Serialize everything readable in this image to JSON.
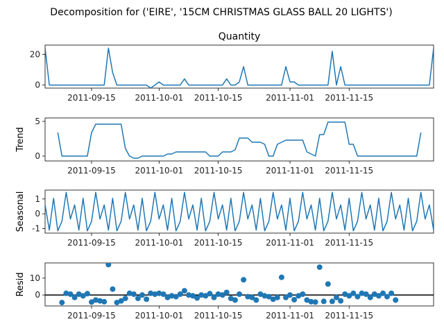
{
  "figure": {
    "suptitle": "Decomposition for ('EIRE', '15CM CHRISTMAS GLASS BALL 20 LIGHTS')",
    "line_color": "#1f77b4"
  },
  "chart_data": [
    {
      "type": "line",
      "title": "Quantity",
      "ylabel": "",
      "x_start": "2011-09-04",
      "x_end": "2011-12-05",
      "x_ticks": [
        "2011-09-15",
        "2011-10-01",
        "2011-10-15",
        "2011-11-01",
        "2011-11-15"
      ],
      "ylim": [
        -2,
        26
      ],
      "y_ticks": [
        0,
        20
      ],
      "points": [
        [
          "2011-09-04",
          24
        ],
        [
          "2011-09-05",
          0
        ],
        [
          "2011-09-06",
          0
        ],
        [
          "2011-09-07",
          0
        ],
        [
          "2011-09-08",
          0
        ],
        [
          "2011-09-09",
          0
        ],
        [
          "2011-09-10",
          0
        ],
        [
          "2011-09-11",
          0
        ],
        [
          "2011-09-12",
          0
        ],
        [
          "2011-09-13",
          0
        ],
        [
          "2011-09-14",
          0
        ],
        [
          "2011-09-15",
          0
        ],
        [
          "2011-09-16",
          0
        ],
        [
          "2011-09-17",
          0
        ],
        [
          "2011-09-18",
          0
        ],
        [
          "2011-09-19",
          24
        ],
        [
          "2011-09-20",
          8
        ],
        [
          "2011-09-21",
          0
        ],
        [
          "2011-09-22",
          0
        ],
        [
          "2011-09-23",
          0
        ],
        [
          "2011-09-24",
          0
        ],
        [
          "2011-09-25",
          0
        ],
        [
          "2011-09-26",
          0
        ],
        [
          "2011-09-27",
          0
        ],
        [
          "2011-09-28",
          0
        ],
        [
          "2011-09-29",
          -2
        ],
        [
          "2011-09-30",
          0
        ],
        [
          "2011-10-01",
          2
        ],
        [
          "2011-10-02",
          0
        ],
        [
          "2011-10-03",
          0
        ],
        [
          "2011-10-04",
          0
        ],
        [
          "2011-10-05",
          0
        ],
        [
          "2011-10-06",
          0
        ],
        [
          "2011-10-07",
          4
        ],
        [
          "2011-10-08",
          0
        ],
        [
          "2011-10-09",
          0
        ],
        [
          "2011-10-10",
          0
        ],
        [
          "2011-10-11",
          0
        ],
        [
          "2011-10-12",
          0
        ],
        [
          "2011-10-13",
          0
        ],
        [
          "2011-10-14",
          0
        ],
        [
          "2011-10-15",
          0
        ],
        [
          "2011-10-16",
          0
        ],
        [
          "2011-10-17",
          4
        ],
        [
          "2011-10-18",
          0
        ],
        [
          "2011-10-19",
          0
        ],
        [
          "2011-10-20",
          2
        ],
        [
          "2011-10-21",
          12
        ],
        [
          "2011-10-22",
          0
        ],
        [
          "2011-10-23",
          0
        ],
        [
          "2011-10-24",
          0
        ],
        [
          "2011-10-25",
          0
        ],
        [
          "2011-10-26",
          0
        ],
        [
          "2011-10-27",
          0
        ],
        [
          "2011-10-28",
          0
        ],
        [
          "2011-10-29",
          0
        ],
        [
          "2011-10-30",
          0
        ],
        [
          "2011-10-31",
          12
        ],
        [
          "2011-11-01",
          2
        ],
        [
          "2011-11-02",
          2
        ],
        [
          "2011-11-03",
          0
        ],
        [
          "2011-11-04",
          0
        ],
        [
          "2011-11-05",
          0
        ],
        [
          "2011-11-06",
          0
        ],
        [
          "2011-11-07",
          0
        ],
        [
          "2011-11-08",
          0
        ],
        [
          "2011-11-09",
          0
        ],
        [
          "2011-11-10",
          0
        ],
        [
          "2011-11-11",
          22
        ],
        [
          "2011-11-12",
          0
        ],
        [
          "2011-11-13",
          12
        ],
        [
          "2011-11-14",
          0
        ],
        [
          "2011-11-15",
          0
        ],
        [
          "2011-11-16",
          0
        ],
        [
          "2011-11-17",
          0
        ],
        [
          "2011-11-18",
          0
        ],
        [
          "2011-11-19",
          0
        ],
        [
          "2011-11-20",
          0
        ],
        [
          "2011-11-21",
          0
        ],
        [
          "2011-11-22",
          0
        ],
        [
          "2011-11-23",
          0
        ],
        [
          "2011-11-24",
          0
        ],
        [
          "2011-11-25",
          0
        ],
        [
          "2011-11-26",
          0
        ],
        [
          "2011-11-27",
          0
        ],
        [
          "2011-11-28",
          0
        ],
        [
          "2011-11-29",
          0
        ],
        [
          "2011-11-30",
          0
        ],
        [
          "2011-12-01",
          0
        ],
        [
          "2011-12-02",
          0
        ],
        [
          "2011-12-03",
          0
        ],
        [
          "2011-12-04",
          0
        ],
        [
          "2011-12-05",
          24
        ]
      ]
    },
    {
      "type": "line",
      "title": "",
      "ylabel": "Trend",
      "x_start": "2011-09-04",
      "x_end": "2011-12-05",
      "x_ticks": [
        "2011-09-15",
        "2011-10-01",
        "2011-10-15",
        "2011-11-01",
        "2011-11-15"
      ],
      "ylim": [
        -0.7,
        5.5
      ],
      "y_ticks": [
        0,
        5
      ],
      "points": [
        [
          "2011-09-07",
          3.4
        ],
        [
          "2011-09-08",
          0
        ],
        [
          "2011-09-09",
          0
        ],
        [
          "2011-09-10",
          0
        ],
        [
          "2011-09-11",
          0
        ],
        [
          "2011-09-12",
          0
        ],
        [
          "2011-09-13",
          0
        ],
        [
          "2011-09-14",
          0
        ],
        [
          "2011-09-15",
          3.4
        ],
        [
          "2011-09-16",
          4.6
        ],
        [
          "2011-09-17",
          4.6
        ],
        [
          "2011-09-18",
          4.6
        ],
        [
          "2011-09-19",
          4.6
        ],
        [
          "2011-09-20",
          4.6
        ],
        [
          "2011-09-21",
          4.6
        ],
        [
          "2011-09-22",
          4.6
        ],
        [
          "2011-09-23",
          1.1
        ],
        [
          "2011-09-24",
          0
        ],
        [
          "2011-09-25",
          -0.3
        ],
        [
          "2011-09-26",
          -0.3
        ],
        [
          "2011-09-27",
          0
        ],
        [
          "2011-09-28",
          0
        ],
        [
          "2011-09-29",
          0
        ],
        [
          "2011-09-30",
          0
        ],
        [
          "2011-10-01",
          0
        ],
        [
          "2011-10-02",
          0
        ],
        [
          "2011-10-03",
          0.3
        ],
        [
          "2011-10-04",
          0.3
        ],
        [
          "2011-10-05",
          0.6
        ],
        [
          "2011-10-06",
          0.6
        ],
        [
          "2011-10-07",
          0.6
        ],
        [
          "2011-10-08",
          0.6
        ],
        [
          "2011-10-09",
          0.6
        ],
        [
          "2011-10-10",
          0.6
        ],
        [
          "2011-10-11",
          0.6
        ],
        [
          "2011-10-12",
          0.6
        ],
        [
          "2011-10-13",
          0
        ],
        [
          "2011-10-14",
          0
        ],
        [
          "2011-10-15",
          0
        ],
        [
          "2011-10-16",
          0.6
        ],
        [
          "2011-10-17",
          0.6
        ],
        [
          "2011-10-18",
          0.6
        ],
        [
          "2011-10-19",
          0.9
        ],
        [
          "2011-10-20",
          2.6
        ],
        [
          "2011-10-21",
          2.6
        ],
        [
          "2011-10-22",
          2.6
        ],
        [
          "2011-10-23",
          2.0
        ],
        [
          "2011-10-24",
          2.0
        ],
        [
          "2011-10-25",
          2.0
        ],
        [
          "2011-10-26",
          1.7
        ],
        [
          "2011-10-27",
          0
        ],
        [
          "2011-10-28",
          0
        ],
        [
          "2011-10-29",
          1.7
        ],
        [
          "2011-10-30",
          2.0
        ],
        [
          "2011-10-31",
          2.3
        ],
        [
          "2011-11-01",
          2.3
        ],
        [
          "2011-11-02",
          2.3
        ],
        [
          "2011-11-03",
          2.3
        ],
        [
          "2011-11-04",
          2.3
        ],
        [
          "2011-11-05",
          0.6
        ],
        [
          "2011-11-06",
          0.3
        ],
        [
          "2011-11-07",
          0
        ],
        [
          "2011-11-08",
          3.1
        ],
        [
          "2011-11-09",
          3.1
        ],
        [
          "2011-11-10",
          4.9
        ],
        [
          "2011-11-11",
          4.9
        ],
        [
          "2011-11-12",
          4.9
        ],
        [
          "2011-11-13",
          4.9
        ],
        [
          "2011-11-14",
          4.9
        ],
        [
          "2011-11-15",
          1.7
        ],
        [
          "2011-11-16",
          1.7
        ],
        [
          "2011-11-17",
          0
        ],
        [
          "2011-11-18",
          0
        ],
        [
          "2011-11-19",
          0
        ],
        [
          "2011-11-20",
          0
        ],
        [
          "2011-11-21",
          0
        ],
        [
          "2011-11-22",
          0
        ],
        [
          "2011-11-23",
          0
        ],
        [
          "2011-11-24",
          0
        ],
        [
          "2011-11-25",
          0
        ],
        [
          "2011-11-26",
          0
        ],
        [
          "2011-11-27",
          0
        ],
        [
          "2011-11-28",
          0
        ],
        [
          "2011-11-29",
          0
        ],
        [
          "2011-11-30",
          0
        ],
        [
          "2011-12-01",
          0
        ],
        [
          "2011-12-02",
          3.4
        ]
      ]
    },
    {
      "type": "line",
      "title": "",
      "ylabel": "Seasonal",
      "x_start": "2011-09-04",
      "x_end": "2011-12-05",
      "x_ticks": [
        "2011-09-15",
        "2011-10-01",
        "2011-10-15",
        "2011-11-01",
        "2011-11-15"
      ],
      "ylim": [
        -1.3,
        1.6
      ],
      "y_ticks": [
        -1,
        0,
        1
      ],
      "period_days": 7,
      "pattern": [
        0.6,
        -1.1,
        1.05,
        -1.15,
        -0.5,
        1.45,
        -0.35
      ],
      "points": []
    },
    {
      "type": "scatter",
      "title": "",
      "ylabel": "Resid",
      "x_start": "2011-09-04",
      "x_end": "2011-12-05",
      "x_ticks": [
        "2011-09-15",
        "2011-10-01",
        "2011-10-15",
        "2011-11-01",
        "2011-11-15"
      ],
      "ylim": [
        -6.5,
        19
      ],
      "y_ticks": [
        0,
        10
      ],
      "zero_line": true,
      "points": [
        [
          "2011-09-08",
          -4.5
        ],
        [
          "2011-09-09",
          1.0
        ],
        [
          "2011-09-10",
          0.5
        ],
        [
          "2011-09-11",
          -1.5
        ],
        [
          "2011-09-12",
          0.5
        ],
        [
          "2011-09-13",
          -0.5
        ],
        [
          "2011-09-14",
          0.8
        ],
        [
          "2011-09-15",
          -4.2
        ],
        [
          "2011-09-16",
          -3.0
        ],
        [
          "2011-09-17",
          -3.5
        ],
        [
          "2011-09-18",
          -4.0
        ],
        [
          "2011-09-19",
          18.0
        ],
        [
          "2011-09-20",
          3.5
        ],
        [
          "2011-09-21",
          -4.5
        ],
        [
          "2011-09-22",
          -3.5
        ],
        [
          "2011-09-23",
          -2.0
        ],
        [
          "2011-09-24",
          1.0
        ],
        [
          "2011-09-25",
          0.5
        ],
        [
          "2011-09-26",
          -2.0
        ],
        [
          "2011-09-27",
          0.0
        ],
        [
          "2011-09-28",
          -2.5
        ],
        [
          "2011-09-29",
          1.0
        ],
        [
          "2011-09-30",
          0.5
        ],
        [
          "2011-10-01",
          1.0
        ],
        [
          "2011-10-02",
          0.5
        ],
        [
          "2011-10-03",
          -1.5
        ],
        [
          "2011-10-04",
          -0.5
        ],
        [
          "2011-10-05",
          -1.0
        ],
        [
          "2011-10-06",
          0.5
        ],
        [
          "2011-10-07",
          2.5
        ],
        [
          "2011-10-08",
          0.0
        ],
        [
          "2011-10-09",
          -0.5
        ],
        [
          "2011-10-10",
          -1.8
        ],
        [
          "2011-10-11",
          0.0
        ],
        [
          "2011-10-12",
          -0.5
        ],
        [
          "2011-10-13",
          0.8
        ],
        [
          "2011-10-14",
          -1.5
        ],
        [
          "2011-10-15",
          0.5
        ],
        [
          "2011-10-16",
          0.0
        ],
        [
          "2011-10-17",
          1.5
        ],
        [
          "2011-10-18",
          -2.0
        ],
        [
          "2011-10-19",
          -3.0
        ],
        [
          "2011-10-20",
          0.5
        ],
        [
          "2011-10-21",
          9.0
        ],
        [
          "2011-10-22",
          -1.0
        ],
        [
          "2011-10-23",
          -1.5
        ],
        [
          "2011-10-24",
          -3.0
        ],
        [
          "2011-10-25",
          0.5
        ],
        [
          "2011-10-26",
          -0.5
        ],
        [
          "2011-10-27",
          -1.0
        ],
        [
          "2011-10-28",
          -2.5
        ],
        [
          "2011-10-29",
          -1.5
        ],
        [
          "2011-10-30",
          10.5
        ],
        [
          "2011-10-31",
          -1.5
        ],
        [
          "2011-11-01",
          0.0
        ],
        [
          "2011-11-02",
          -2.8
        ],
        [
          "2011-11-03",
          -0.5
        ],
        [
          "2011-11-04",
          0.5
        ],
        [
          "2011-11-05",
          -3.0
        ],
        [
          "2011-11-06",
          -4.0
        ],
        [
          "2011-11-07",
          -4.2
        ],
        [
          "2011-11-08",
          16.5
        ],
        [
          "2011-11-09",
          -3.8
        ],
        [
          "2011-11-10",
          6.5
        ],
        [
          "2011-11-11",
          -3.8
        ],
        [
          "2011-11-12",
          -1.5
        ],
        [
          "2011-11-13",
          -3.5
        ],
        [
          "2011-11-14",
          0.5
        ],
        [
          "2011-11-15",
          -0.5
        ],
        [
          "2011-11-16",
          1.0
        ],
        [
          "2011-11-17",
          -1.0
        ],
        [
          "2011-11-18",
          1.0
        ],
        [
          "2011-11-19",
          0.5
        ],
        [
          "2011-11-20",
          -1.5
        ],
        [
          "2011-11-21",
          0.5
        ],
        [
          "2011-11-22",
          -0.5
        ],
        [
          "2011-11-23",
          1.0
        ],
        [
          "2011-11-24",
          -1.0
        ],
        [
          "2011-11-25",
          1.0
        ],
        [
          "2011-11-26",
          -3.0
        ]
      ]
    }
  ]
}
